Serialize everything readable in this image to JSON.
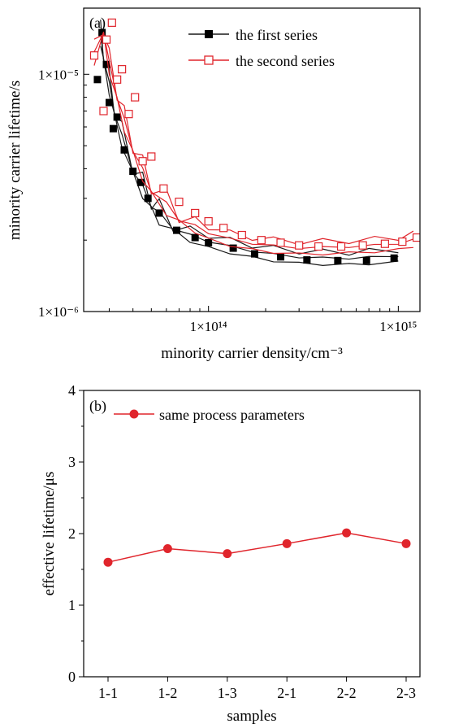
{
  "chart_data": [
    {
      "type": "line",
      "panel_label": "(a)",
      "scale": {
        "x": "log",
        "y": "log"
      },
      "xlabel": "minority carrier density/cm⁻³",
      "ylabel": "minority carrier lifetime/s",
      "xlim": [
        22000000000000.0,
        1300000000000000.0
      ],
      "ylim": [
        1e-06,
        1.9e-05
      ],
      "x_ticks": [
        {
          "value": 100000000000000.0,
          "label": "1×10¹⁴"
        },
        {
          "value": 1000000000000000.0,
          "label": "1×10¹⁵"
        }
      ],
      "y_ticks": [
        {
          "value": 1e-06,
          "label": "1×10⁻⁶"
        },
        {
          "value": 1e-05,
          "label": "1×10⁻⁵"
        }
      ],
      "legend_position": "top-right",
      "series": [
        {
          "name": "the first series",
          "color": "#1a1a1a",
          "marker": "filled-square",
          "line_x": [
            27000000000000.0,
            28000000000000.0,
            30000000000000.0,
            32000000000000.0,
            35000000000000.0,
            40000000000000.0,
            45000000000000.0,
            50000000000000.0,
            55000000000000.0,
            65000000000000.0,
            80000000000000.0,
            100000000000000.0,
            130000000000000.0,
            170000000000000.0,
            220000000000000.0,
            300000000000000.0,
            400000000000000.0,
            550000000000000.0,
            700000000000000.0,
            1000000000000000.0
          ],
          "line_y": [
            1.45e-05,
            1.2e-05,
            9e-06,
            7e-06,
            5.4e-06,
            4e-06,
            3.3e-06,
            2.85e-06,
            2.55e-06,
            2.3e-06,
            2.1e-06,
            1.98e-06,
            1.88e-06,
            1.8e-06,
            1.74e-06,
            1.7e-06,
            1.68e-06,
            1.68e-06,
            1.69e-06,
            1.72e-06
          ],
          "points_x": [
            26000000000000.0,
            27500000000000.0,
            29000000000000.0,
            30000000000000.0,
            31500000000000.0,
            33000000000000.0,
            36000000000000.0,
            40000000000000.0,
            44000000000000.0,
            48000000000000.0,
            55000000000000.0,
            68000000000000.0,
            85000000000000.0,
            100000000000000.0,
            135000000000000.0,
            175000000000000.0,
            240000000000000.0,
            330000000000000.0,
            480000000000000.0,
            680000000000000.0,
            950000000000000.0
          ],
          "points_y": [
            9.5e-06,
            1.5e-05,
            1.1e-05,
            7.6e-06,
            5.9e-06,
            6.6e-06,
            4.8e-06,
            3.9e-06,
            3.5e-06,
            3e-06,
            2.6e-06,
            2.2e-06,
            2.05e-06,
            1.95e-06,
            1.85e-06,
            1.75e-06,
            1.7e-06,
            1.65e-06,
            1.64e-06,
            1.64e-06,
            1.68e-06
          ]
        },
        {
          "name": "the second series",
          "color": "#e0252c",
          "marker": "open-square",
          "line_x": [
            25000000000000.0,
            28000000000000.0,
            30000000000000.0,
            33000000000000.0,
            36000000000000.0,
            40000000000000.0,
            45000000000000.0,
            50000000000000.0,
            60000000000000.0,
            70000000000000.0,
            85000000000000.0,
            100000000000000.0,
            130000000000000.0,
            170000000000000.0,
            220000000000000.0,
            300000000000000.0,
            400000000000000.0,
            550000000000000.0,
            750000000000000.0,
            1000000000000000.0,
            1200000000000000.0
          ],
          "line_y": [
            1.2e-05,
            1.55e-05,
            1.1e-05,
            8.2e-06,
            6.3e-06,
            4.9e-06,
            3.9e-06,
            3.3e-06,
            2.8e-06,
            2.5e-06,
            2.3e-06,
            2.15e-06,
            2.02e-06,
            1.94e-06,
            1.89e-06,
            1.86e-06,
            1.86e-06,
            1.88e-06,
            1.9e-06,
            1.94e-06,
            2e-06
          ],
          "points_x": [
            25000000000000.0,
            28000000000000.0,
            29000000000000.0,
            31000000000000.0,
            33000000000000.0,
            35000000000000.0,
            38000000000000.0,
            41000000000000.0,
            45000000000000.0,
            50000000000000.0,
            58000000000000.0,
            70000000000000.0,
            85000000000000.0,
            100000000000000.0,
            120000000000000.0,
            150000000000000.0,
            190000000000000.0,
            240000000000000.0,
            300000000000000.0,
            380000000000000.0,
            500000000000000.0,
            650000000000000.0,
            850000000000000.0,
            1050000000000000.0,
            1250000000000000.0
          ],
          "points_y": [
            1.2e-05,
            7e-06,
            1.4e-05,
            1.65e-05,
            9.5e-06,
            1.05e-05,
            6.8e-06,
            8e-06,
            4.3e-06,
            4.5e-06,
            3.3e-06,
            2.9e-06,
            2.6e-06,
            2.4e-06,
            2.25e-06,
            2.1e-06,
            2e-06,
            1.95e-06,
            1.9e-06,
            1.88e-06,
            1.88e-06,
            1.9e-06,
            1.93e-06,
            1.97e-06,
            2.05e-06
          ]
        }
      ]
    },
    {
      "type": "line",
      "panel_label": "(b)",
      "xlabel": "samples",
      "ylabel": "effective lifetime/μs",
      "categories": [
        "1-1",
        "1-2",
        "1-3",
        "2-1",
        "2-2",
        "2-3"
      ],
      "ylim": [
        0,
        4
      ],
      "y_ticks": [
        0,
        1,
        2,
        3,
        4
      ],
      "legend_position": "top-left",
      "series": [
        {
          "name": "same process parameters",
          "color": "#e0252c",
          "marker": "filled-circle",
          "values": [
            1.6,
            1.79,
            1.72,
            1.86,
            2.01,
            1.86
          ]
        }
      ]
    }
  ]
}
